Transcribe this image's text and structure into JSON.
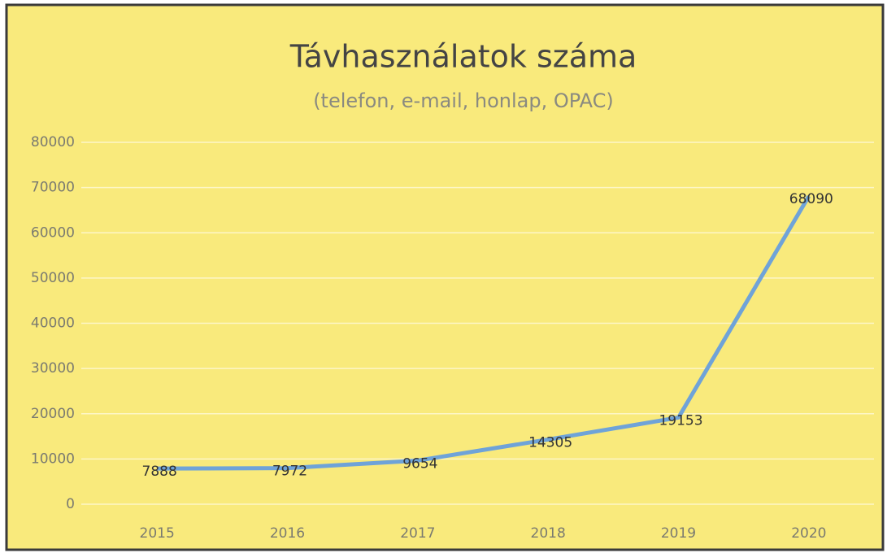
{
  "chart_data": {
    "type": "line",
    "title": "Távhasználatok száma",
    "subtitle": "(telefon, e-mail, honlap, OPAC)",
    "categories": [
      "2015",
      "2016",
      "2017",
      "2018",
      "2019",
      "2020"
    ],
    "series": [
      {
        "name": "Távhasználatok száma",
        "color": "#6fa3d8",
        "values": [
          7888,
          7972,
          9654,
          14305,
          19153,
          68090
        ]
      }
    ],
    "ylim": [
      0,
      80000
    ],
    "yticks": [
      0,
      10000,
      20000,
      30000,
      40000,
      50000,
      60000,
      70000,
      80000
    ],
    "grid": true
  }
}
